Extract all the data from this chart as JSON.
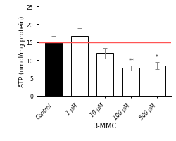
{
  "categories": [
    "Control",
    "1 μM",
    "10 μM",
    "100 μM",
    "500 μM"
  ],
  "values": [
    15.0,
    16.7,
    11.9,
    7.8,
    8.5
  ],
  "errors": [
    1.8,
    2.2,
    1.5,
    0.7,
    1.0
  ],
  "bar_colors": [
    "black",
    "white",
    "white",
    "white",
    "white"
  ],
  "bar_edge_colors": [
    "black",
    "black",
    "black",
    "black",
    "black"
  ],
  "significance": [
    "",
    "",
    "",
    "**",
    "*"
  ],
  "hline_y": 15.0,
  "hline_color": "#ff5555",
  "ylabel": "ATP (nmol/mg protein)",
  "xlabel": "3-MMC",
  "ylim": [
    0,
    25
  ],
  "yticks": [
    0,
    5,
    10,
    15,
    20,
    25
  ],
  "bar_width": 0.65,
  "sig_fontsize": 5.5,
  "label_fontsize": 6.5,
  "tick_fontsize": 5.5,
  "xlabel_fontsize": 7.0
}
